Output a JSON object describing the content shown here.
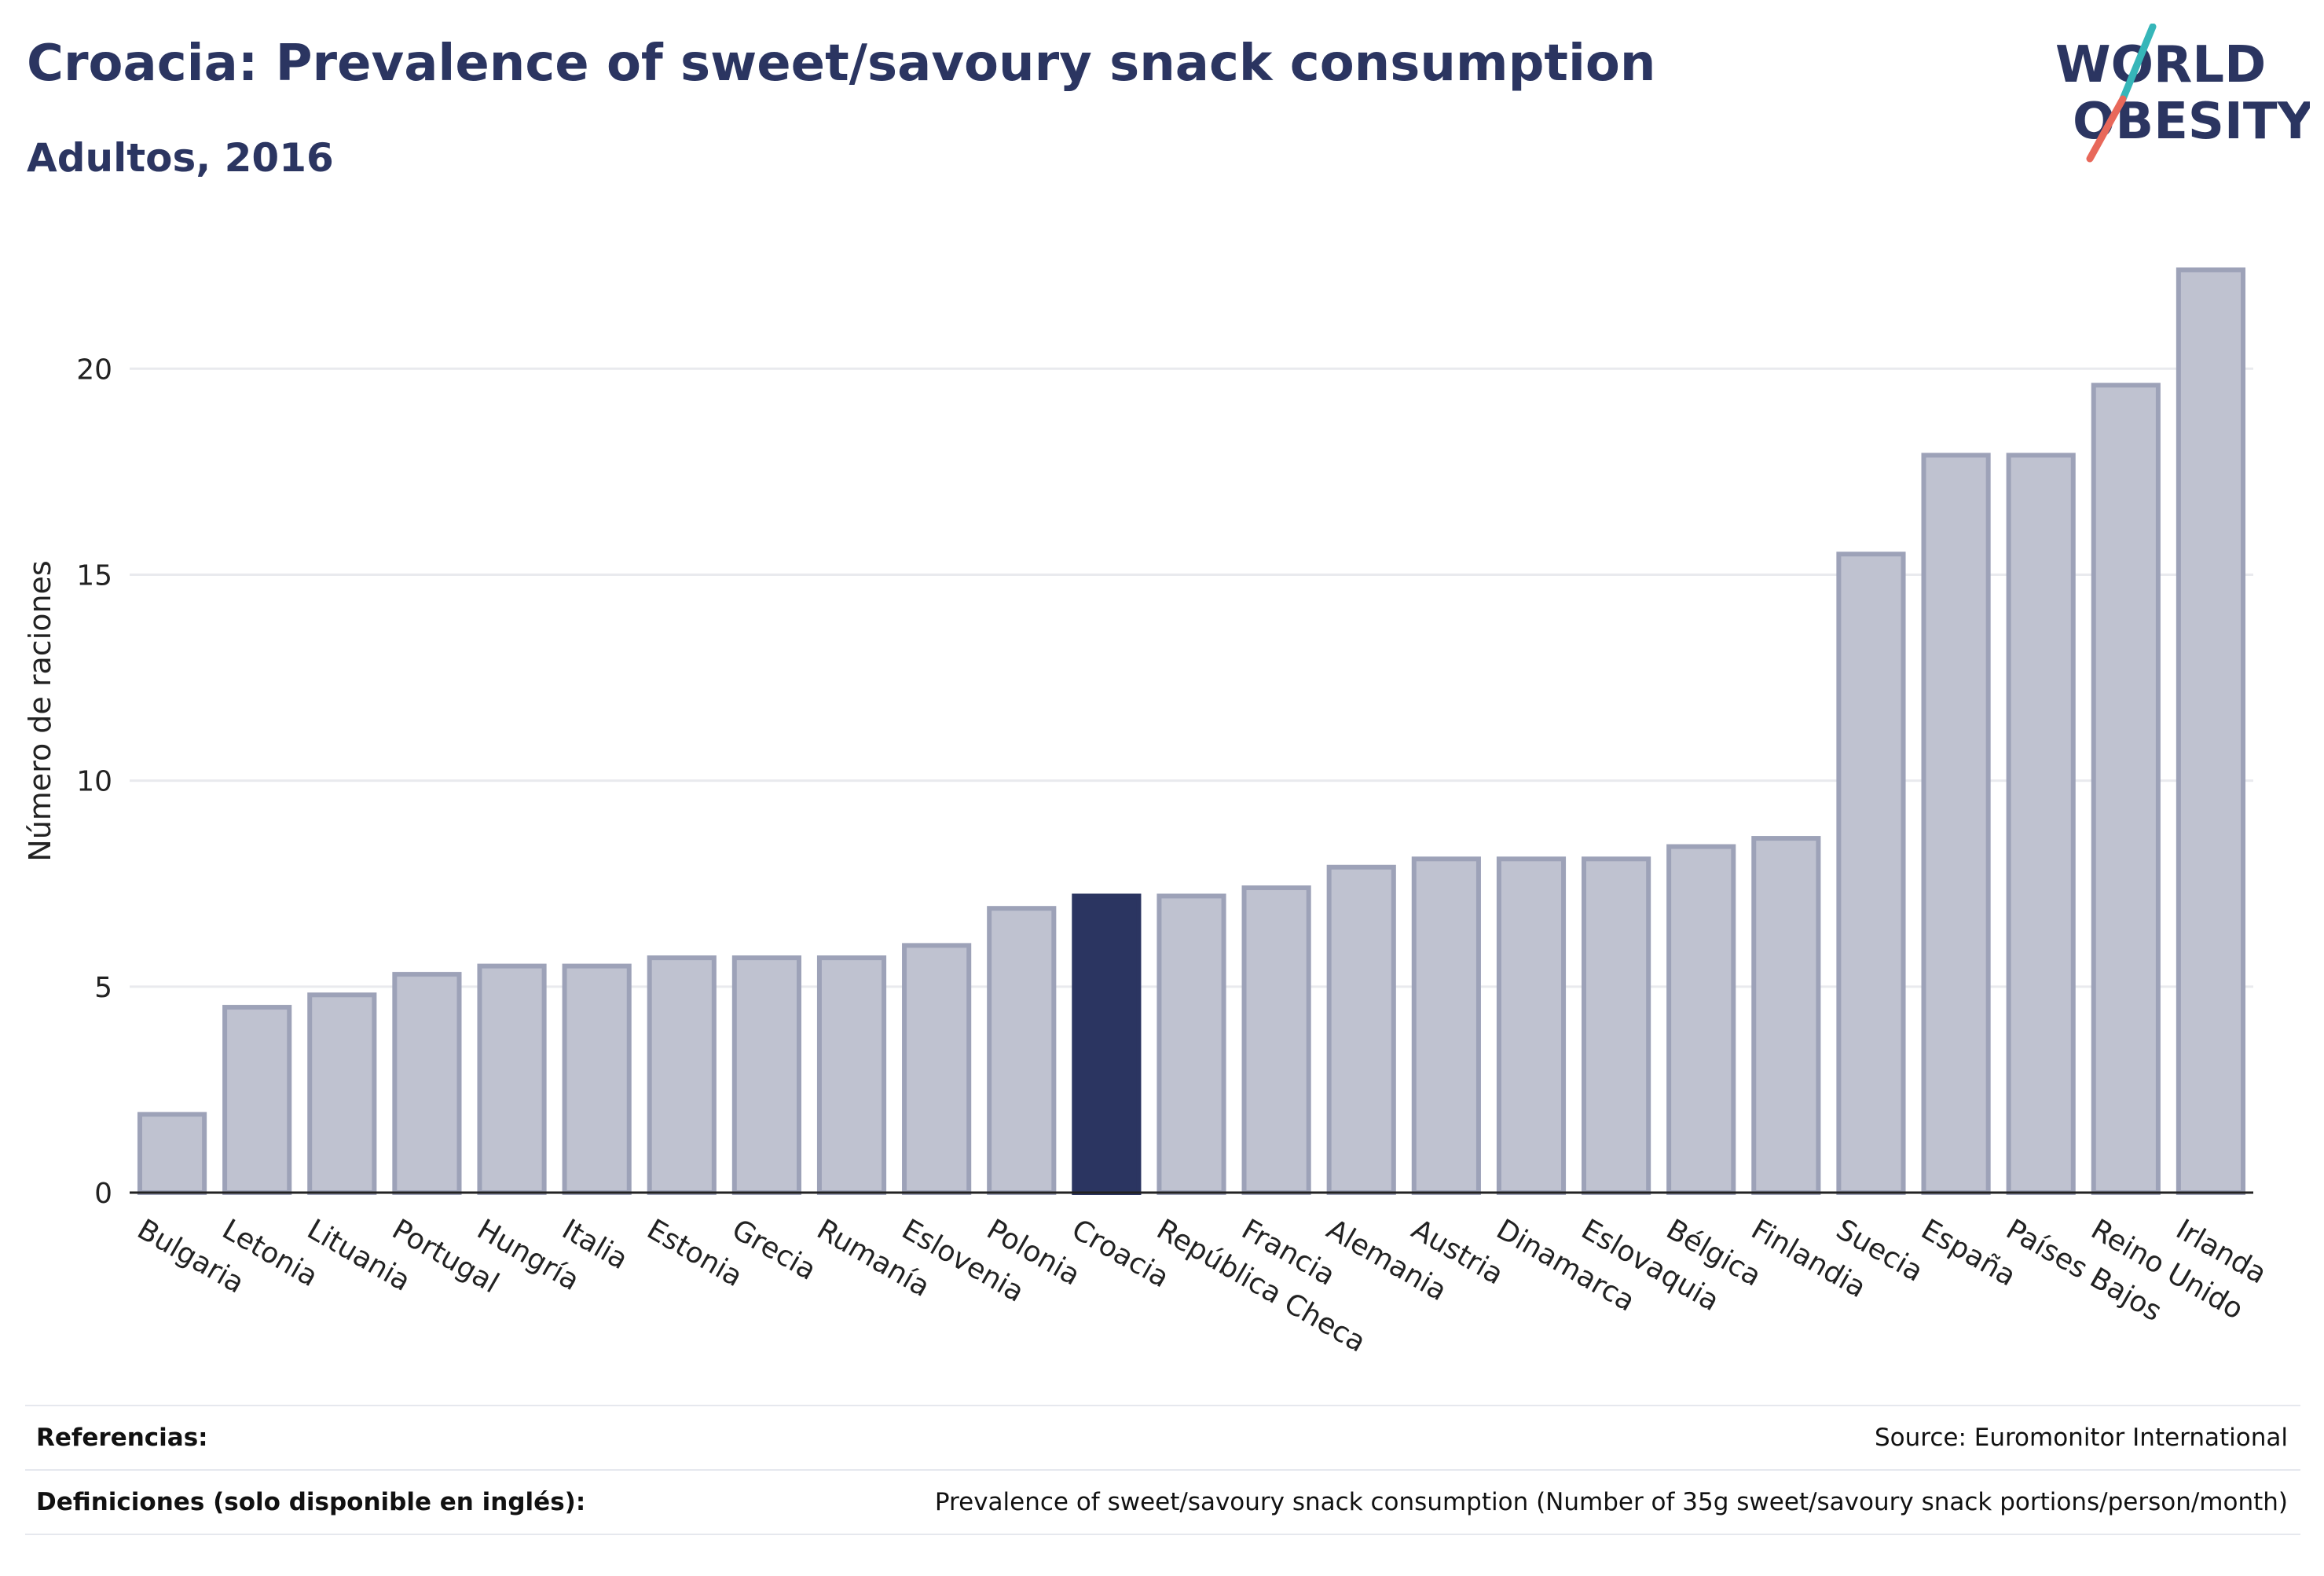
{
  "header": {
    "title": "Croacia: Prevalence of sweet/savoury snack consumption",
    "subtitle": "Adultos, 2016"
  },
  "logo": {
    "line1": "WORLD",
    "line2": "OBESITY",
    "colors": {
      "text": "#2b3561",
      "slash_top": "#36b6b9",
      "slash_bottom": "#e8685a"
    }
  },
  "chart_data": {
    "type": "bar",
    "ylabel": "Número de raciones",
    "xlabel": "",
    "ylim": [
      0,
      23
    ],
    "yticks": [
      0,
      5,
      10,
      15,
      20
    ],
    "grid": true,
    "highlight": "Croacia",
    "colors": {
      "default": "#bfc2d0",
      "default_border": "#9da2b8",
      "highlight": "#2b3561"
    },
    "categories": [
      "Bulgaria",
      "Letonia",
      "Lituania",
      "Portugal",
      "Hungría",
      "Italia",
      "Estonia",
      "Grecia",
      "Rumanía",
      "Eslovenia",
      "Polonia",
      "Croacia",
      "República Checa",
      "Francia",
      "Alemania",
      "Austria",
      "Dinamarca",
      "Eslovaquia",
      "Bélgica",
      "Finlandia",
      "Suecia",
      "España",
      "Países Bajos",
      "Reino Unido",
      "Irlanda"
    ],
    "values": [
      1.9,
      4.5,
      4.8,
      5.3,
      5.5,
      5.5,
      5.7,
      5.7,
      5.7,
      6.0,
      6.9,
      7.2,
      7.2,
      7.4,
      7.9,
      8.1,
      8.1,
      8.1,
      8.4,
      8.6,
      15.5,
      17.9,
      17.9,
      19.6,
      22.4
    ]
  },
  "footer": {
    "references_label": "Referencias:",
    "references_value": "Source: Euromonitor International",
    "definitions_label": "Definiciones (solo disponible en inglés):",
    "definitions_value": "Prevalence of sweet/savoury snack consumption (Number of 35g sweet/savoury snack portions/person/month)"
  }
}
